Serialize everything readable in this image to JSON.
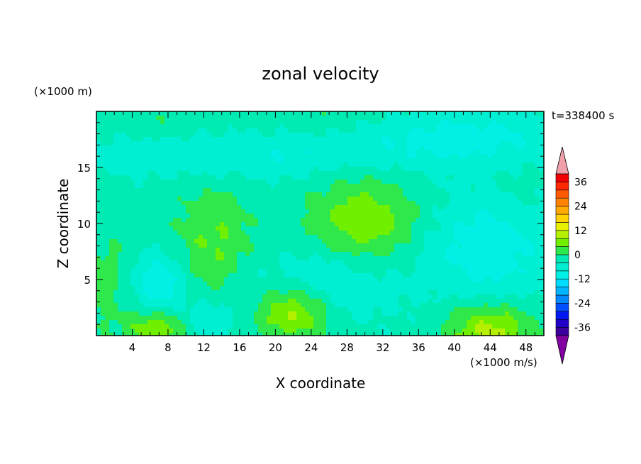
{
  "chart_data": {
    "type": "heatmap",
    "title": "zonal velocity",
    "xlabel": "X coordinate",
    "ylabel": "Z coordinate",
    "x_unit": "(×1000 m/s)",
    "y_unit": "(×1000 m)",
    "time_label": "t=338400 s",
    "xlim": [
      0,
      50
    ],
    "ylim": [
      0,
      20
    ],
    "x_ticks": [
      4,
      8,
      12,
      16,
      20,
      24,
      28,
      32,
      36,
      40,
      44,
      48
    ],
    "y_ticks": [
      5,
      10,
      15
    ],
    "colorbar": {
      "levels": [
        -40,
        -36,
        -32,
        -28,
        -24,
        -20,
        -16,
        -12,
        -8,
        -4,
        0,
        4,
        8,
        12,
        16,
        20,
        24,
        28,
        32,
        36,
        40
      ],
      "tick_labels": [
        "36",
        "24",
        "12",
        "0",
        "-12",
        "-24",
        "-36"
      ],
      "tick_values": [
        36,
        24,
        12,
        0,
        -12,
        -24,
        -36
      ],
      "colors": [
        "#3b009c",
        "#2200c8",
        "#0019f0",
        "#0050ff",
        "#0088ff",
        "#00b4ff",
        "#00dcff",
        "#00f0e6",
        "#00eed2",
        "#00ebb4",
        "#2ee84c",
        "#70f000",
        "#b4f000",
        "#e8f000",
        "#ffd200",
        "#ffaa00",
        "#ff8200",
        "#ff5a00",
        "#ff2800",
        "#f00000"
      ],
      "upper_arrow_color": "#f0a0a8",
      "lower_arrow_color": "#8200a0"
    },
    "field_blobs": [
      {
        "x": 30,
        "z": 10,
        "sx": 4.2,
        "sz": 3.0,
        "v": 10
      },
      {
        "x": 13,
        "z": 8.5,
        "sx": 3.0,
        "sz": 3.2,
        "v": 7
      },
      {
        "x": 22,
        "z": 2,
        "sx": 2.8,
        "sz": 1.7,
        "v": 12
      },
      {
        "x": 7,
        "z": 0.6,
        "sx": 2.5,
        "sz": 1.4,
        "v": 12
      },
      {
        "x": 44,
        "z": 0.6,
        "sx": 3.5,
        "sz": 1.6,
        "v": 12
      },
      {
        "x": 1,
        "z": 5,
        "sx": 2.2,
        "sz": 3.2,
        "v": 4
      },
      {
        "x": 7,
        "z": 19.5,
        "sx": 4,
        "sz": 1.2,
        "v": 2
      },
      {
        "x": 25,
        "z": 19.5,
        "sx": 3.5,
        "sz": 1.2,
        "v": 2
      },
      {
        "x": 47,
        "z": 13,
        "sx": 2.5,
        "sz": 2.5,
        "v": 2
      },
      {
        "x": 27,
        "z": 5,
        "sx": 6,
        "sz": 2.5,
        "v": -6
      },
      {
        "x": 7,
        "z": 4.5,
        "sx": 2.2,
        "sz": 2.2,
        "v": -9
      },
      {
        "x": 44,
        "z": 8,
        "sx": 5,
        "sz": 3.5,
        "v": -8
      },
      {
        "x": 20,
        "z": 16,
        "sx": 18,
        "sz": 1.5,
        "v": -5
      },
      {
        "x": 42,
        "z": 18,
        "sx": 8,
        "sz": 1.5,
        "v": -6
      },
      {
        "x": 12,
        "z": 1.2,
        "sx": 2.5,
        "sz": 1.5,
        "v": -5
      }
    ]
  }
}
